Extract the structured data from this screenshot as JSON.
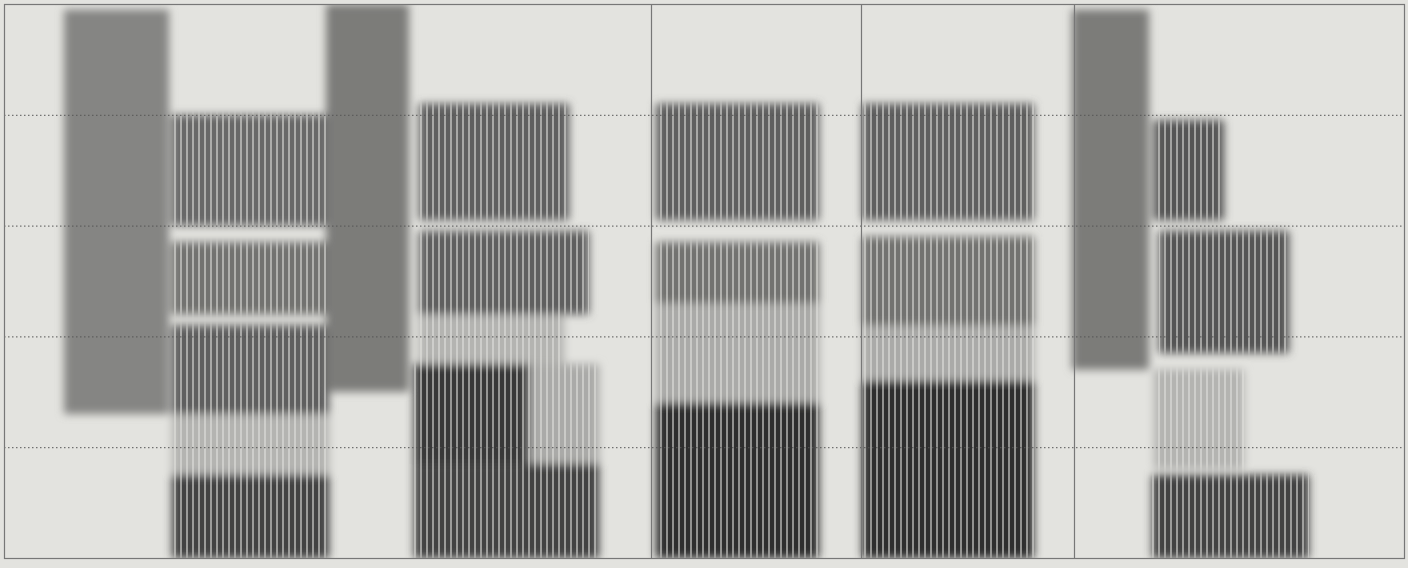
{
  "chart_data": {
    "type": "spectrogram",
    "xlim": [
      0,
      1400
    ],
    "ylim": [
      0,
      5
    ],
    "yticks": [
      1,
      2,
      3,
      4
    ],
    "grid": true,
    "tick_labels": false,
    "color": "#262626",
    "boundaries": [
      647,
      857,
      1070
    ],
    "cells": [
      {
        "t0": 60,
        "t1": 165,
        "f0": 1.3,
        "f1": 4.95,
        "level": 0.5,
        "voiced": false
      },
      {
        "t0": 168,
        "t1": 325,
        "f0": 0,
        "f1": 0.75,
        "level": 0.85,
        "voiced": true
      },
      {
        "t0": 168,
        "t1": 325,
        "f0": 0.75,
        "f1": 1.3,
        "level": 0.25,
        "voiced": true
      },
      {
        "t0": 168,
        "t1": 325,
        "f0": 1.3,
        "f1": 2.1,
        "level": 0.7,
        "voiced": true
      },
      {
        "t0": 168,
        "t1": 325,
        "f0": 2.2,
        "f1": 2.85,
        "level": 0.6,
        "voiced": true
      },
      {
        "t0": 168,
        "t1": 325,
        "f0": 3.0,
        "f1": 4.0,
        "level": 0.65,
        "voiced": true
      },
      {
        "t0": 322,
        "t1": 405,
        "f0": 1.5,
        "f1": 5.0,
        "level": 0.55,
        "voiced": false
      },
      {
        "t0": 410,
        "t1": 595,
        "f0": 0,
        "f1": 0.85,
        "level": 0.85,
        "voiced": true
      },
      {
        "t0": 410,
        "t1": 525,
        "f0": 0.85,
        "f1": 1.75,
        "level": 0.9,
        "voiced": true
      },
      {
        "t0": 525,
        "t1": 595,
        "f0": 0.85,
        "f1": 1.75,
        "level": 0.3,
        "voiced": true
      },
      {
        "t0": 415,
        "t1": 560,
        "f0": 1.75,
        "f1": 2.2,
        "level": 0.25,
        "voiced": true
      },
      {
        "t0": 415,
        "t1": 585,
        "f0": 2.2,
        "f1": 2.95,
        "level": 0.7,
        "voiced": true
      },
      {
        "t0": 415,
        "t1": 565,
        "f0": 3.05,
        "f1": 4.1,
        "level": 0.7,
        "voiced": true
      },
      {
        "t0": 652,
        "t1": 815,
        "f0": 0,
        "f1": 1.4,
        "level": 0.95,
        "voiced": true
      },
      {
        "t0": 652,
        "t1": 815,
        "f0": 1.4,
        "f1": 2.3,
        "level": 0.3,
        "voiced": true
      },
      {
        "t0": 652,
        "t1": 815,
        "f0": 2.3,
        "f1": 2.85,
        "level": 0.6,
        "voiced": true
      },
      {
        "t0": 652,
        "t1": 815,
        "f0": 3.05,
        "f1": 4.1,
        "level": 0.7,
        "voiced": true
      },
      {
        "t0": 858,
        "t1": 1030,
        "f0": 0,
        "f1": 1.6,
        "level": 0.95,
        "voiced": true
      },
      {
        "t0": 858,
        "t1": 1030,
        "f0": 1.6,
        "f1": 2.1,
        "level": 0.3,
        "voiced": true
      },
      {
        "t0": 858,
        "t1": 1030,
        "f0": 2.1,
        "f1": 2.9,
        "level": 0.6,
        "voiced": true
      },
      {
        "t0": 858,
        "t1": 1030,
        "f0": 3.05,
        "f1": 4.1,
        "level": 0.7,
        "voiced": true
      },
      {
        "t0": 1068,
        "t1": 1145,
        "f0": 1.7,
        "f1": 4.95,
        "level": 0.55,
        "voiced": false
      },
      {
        "t0": 1148,
        "t1": 1305,
        "f0": 0,
        "f1": 0.75,
        "level": 0.85,
        "voiced": true
      },
      {
        "t0": 1150,
        "t1": 1240,
        "f0": 0.8,
        "f1": 1.7,
        "level": 0.25,
        "voiced": true
      },
      {
        "t0": 1155,
        "t1": 1285,
        "f0": 1.85,
        "f1": 2.95,
        "level": 0.75,
        "voiced": true
      },
      {
        "t0": 1150,
        "t1": 1220,
        "f0": 3.05,
        "f1": 3.95,
        "level": 0.75,
        "voiced": true
      }
    ]
  }
}
